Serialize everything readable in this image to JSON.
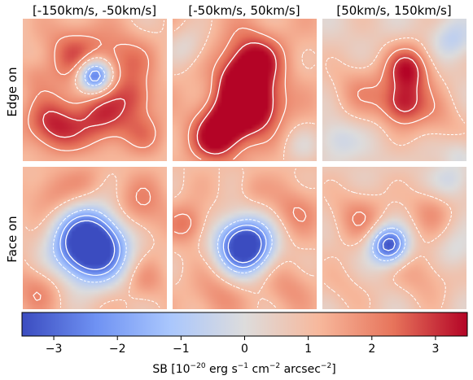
{
  "chart_data": {
    "type": "heatmap",
    "column_titles": [
      "[-150km/s, -50km/s]",
      "[-50km/s, 50km/s]",
      "[50km/s, 150km/s]"
    ],
    "row_labels": [
      "Edge on",
      "Face on"
    ],
    "colorbar": {
      "label": "SB [10^-20 erg s^-1 cm^-2 arcsec^-2]",
      "label_main": "SB [10",
      "label_exp1": "−20",
      "label_mid1": " erg s",
      "label_exp2": "−1",
      "label_mid2": " cm",
      "label_exp3": "−2",
      "label_mid3": " arcsec",
      "label_exp4": "−2",
      "label_end": "]",
      "range": [
        -3.5,
        3.5
      ],
      "ticks": [
        -3,
        -2,
        -1,
        0,
        1,
        2,
        3
      ],
      "tick_labels": [
        "−3",
        "−2",
        "−1",
        "0",
        "1",
        "2",
        "3"
      ],
      "colormap": "coolwarm",
      "colors": [
        "#3b4cc0",
        "#6f92f3",
        "#aac7fd",
        "#dddcdc",
        "#f7b89c",
        "#e7745b",
        "#b40426"
      ]
    },
    "contours": {
      "dotted": "white dotted",
      "dashed": "white dashed",
      "solid": "white solid"
    },
    "panels": [
      {
        "row": 0,
        "col": 0,
        "background": 0.9,
        "blobs": [
          [
            0.35,
            0.25,
            0.16,
            1.6
          ],
          [
            0.7,
            0.3,
            0.15,
            1.4
          ],
          [
            0.2,
            0.75,
            0.14,
            2.2
          ],
          [
            0.55,
            0.7,
            0.15,
            2.0
          ],
          [
            0.85,
            0.8,
            0.12,
            1.0
          ],
          [
            0.08,
            0.4,
            0.08,
            0.6
          ],
          [
            0.5,
            0.4,
            0.08,
            -4.8
          ],
          [
            0.8,
            0.55,
            0.1,
            1.2
          ]
        ]
      },
      {
        "row": 0,
        "col": 1,
        "background": 1.2,
        "blobs": [
          [
            0.55,
            0.3,
            0.14,
            2.6
          ],
          [
            0.6,
            0.6,
            0.13,
            2.2
          ],
          [
            0.4,
            0.7,
            0.14,
            2.3
          ],
          [
            0.3,
            0.85,
            0.12,
            1.8
          ],
          [
            0.45,
            0.45,
            0.1,
            1.5
          ],
          [
            0.1,
            0.2,
            0.1,
            -1.0
          ],
          [
            0.9,
            0.9,
            0.1,
            -0.8
          ]
        ]
      },
      {
        "row": 0,
        "col": 2,
        "background": 0.5,
        "blobs": [
          [
            0.6,
            0.35,
            0.12,
            2.6
          ],
          [
            0.55,
            0.6,
            0.11,
            2.4
          ],
          [
            0.25,
            0.5,
            0.15,
            1.2
          ],
          [
            0.8,
            0.7,
            0.15,
            1.0
          ],
          [
            0.9,
            0.15,
            0.1,
            -1.2
          ],
          [
            0.1,
            0.85,
            0.1,
            -1.0
          ],
          [
            0.95,
            0.95,
            0.08,
            -0.8
          ]
        ]
      },
      {
        "row": 1,
        "col": 0,
        "background": 1.0,
        "blobs": [
          [
            0.47,
            0.55,
            0.17,
            -6.5
          ],
          [
            0.8,
            0.3,
            0.15,
            1.2
          ],
          [
            0.2,
            0.2,
            0.12,
            1.0
          ],
          [
            0.1,
            0.85,
            0.12,
            1.0
          ],
          [
            0.85,
            0.8,
            0.1,
            0.8
          ],
          [
            0.45,
            0.1,
            0.1,
            0.6
          ]
        ]
      },
      {
        "row": 1,
        "col": 1,
        "background": 1.0,
        "blobs": [
          [
            0.5,
            0.55,
            0.13,
            -5.8
          ],
          [
            0.1,
            0.4,
            0.1,
            1.3
          ],
          [
            0.85,
            0.3,
            0.12,
            1.0
          ],
          [
            0.3,
            0.9,
            0.12,
            0.9
          ],
          [
            0.8,
            0.85,
            0.12,
            0.8
          ],
          [
            0.55,
            0.15,
            0.08,
            0.5
          ]
        ]
      },
      {
        "row": 1,
        "col": 2,
        "background": 0.6,
        "blobs": [
          [
            0.46,
            0.55,
            0.09,
            -4.2
          ],
          [
            0.25,
            0.35,
            0.14,
            1.3
          ],
          [
            0.75,
            0.3,
            0.12,
            1.1
          ],
          [
            0.7,
            0.75,
            0.14,
            1.0
          ],
          [
            0.15,
            0.85,
            0.12,
            0.6
          ],
          [
            0.9,
            0.1,
            0.1,
            -1.0
          ],
          [
            0.92,
            0.6,
            0.1,
            -0.8
          ]
        ]
      }
    ]
  }
}
